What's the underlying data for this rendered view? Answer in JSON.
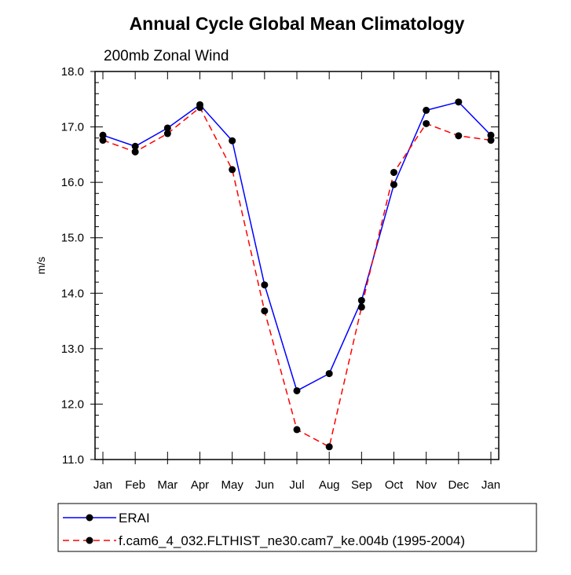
{
  "chart_data": {
    "type": "line",
    "title": "Annual Cycle Global Mean Climatology",
    "subtitle": "200mb Zonal Wind",
    "xlabel": "",
    "ylabel": "m/s",
    "categories": [
      "Jan",
      "Feb",
      "Mar",
      "Apr",
      "May",
      "Jun",
      "Jul",
      "Aug",
      "Sep",
      "Oct",
      "Nov",
      "Dec",
      "Jan"
    ],
    "ylim": [
      11.0,
      18.0
    ],
    "yticks": [
      "11.0",
      "12.0",
      "13.0",
      "14.0",
      "15.0",
      "16.0",
      "17.0",
      "18.0"
    ],
    "grid": false,
    "legend_position": "bottom",
    "series": [
      {
        "name": "ERAI",
        "color": "#0000ff",
        "dash": "solid",
        "values": [
          16.85,
          16.65,
          16.98,
          17.4,
          16.75,
          14.15,
          12.24,
          12.55,
          13.87,
          15.96,
          17.3,
          17.45,
          16.85
        ]
      },
      {
        "name": "f.cam6_4_032.FLTHIST_ne30.cam7_ke.004b (1995-2004)",
        "color": "#ff0000",
        "dash": "dashed",
        "values": [
          16.76,
          16.55,
          16.88,
          17.35,
          16.23,
          13.68,
          11.54,
          11.23,
          13.75,
          16.18,
          17.06,
          16.84,
          16.76
        ]
      }
    ]
  }
}
